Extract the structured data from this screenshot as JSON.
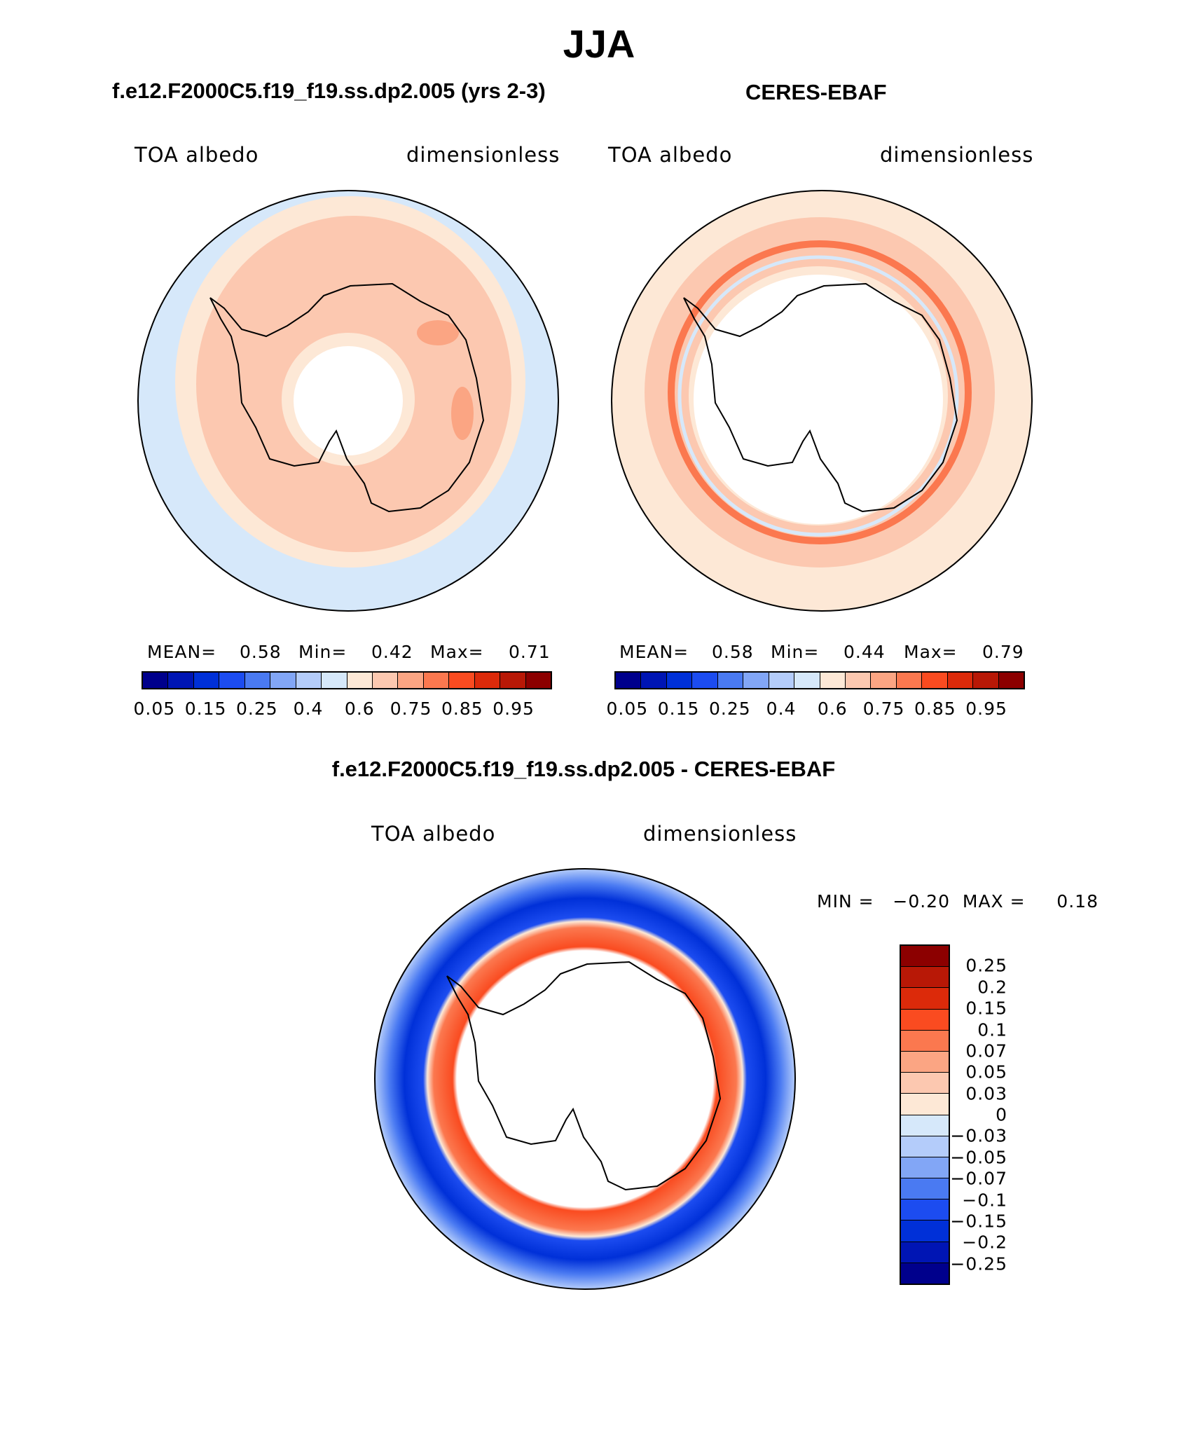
{
  "title": "JJA",
  "panel_left": {
    "title": "f.e12.F2000C5.f19_f19.ss.dp2.005 (yrs 2-3)",
    "variable": "TOA  albedo",
    "units": "dimensionless",
    "mean_label": "MEAN=",
    "mean_value": "0.58",
    "min_label": "Min=",
    "min_value": "0.42",
    "max_label": "Max=",
    "max_value": "0.71"
  },
  "panel_right": {
    "title": "CERES-EBAF",
    "variable": "TOA  albedo",
    "units": "dimensionless",
    "mean_label": "MEAN=",
    "mean_value": "0.58",
    "min_label": "Min=",
    "min_value": "0.44",
    "max_label": "Max=",
    "max_value": "0.79"
  },
  "panel_diff": {
    "title": "f.e12.F2000C5.f19_f19.ss.dp2.005 - CERES-EBAF",
    "variable": "TOA  albedo",
    "units": "dimensionless",
    "minmax_text": "MIN =   −0.20  MAX =     0.18"
  },
  "colorbar_main": {
    "colors": [
      "#00008c",
      "#0015b4",
      "#0030d8",
      "#1c4cf0",
      "#4a7af2",
      "#82a6f6",
      "#b4ccfa",
      "#d6e8fa",
      "#fde8d6",
      "#fcc8b0",
      "#fba583",
      "#fb784f",
      "#fa4b20",
      "#dc2a0a",
      "#b81806",
      "#8c0000"
    ],
    "tick_labels": [
      "0.05",
      "0.15",
      "0.25",
      "0.4",
      "0.6",
      "0.75",
      "0.85",
      "0.95"
    ]
  },
  "colorbar_diff": {
    "colors": [
      "#8c0000",
      "#b81806",
      "#dc2a0a",
      "#fa4b20",
      "#fb784f",
      "#fba583",
      "#fcc8b0",
      "#fde8d6",
      "#d6e8fa",
      "#b4ccfa",
      "#82a6f6",
      "#4a7af2",
      "#1c4cf0",
      "#0030d8",
      "#0015b4",
      "#00008c"
    ],
    "tick_labels": [
      "0.25",
      "0.2",
      "0.15",
      "0.1",
      "0.07",
      "0.05",
      "0.03",
      "0",
      "−0.03",
      "−0.05",
      "−0.07",
      "−0.1",
      "−0.15",
      "−0.2",
      "−0.25"
    ]
  },
  "colors": {
    "land": "#ffffff",
    "coast": "#000000"
  }
}
